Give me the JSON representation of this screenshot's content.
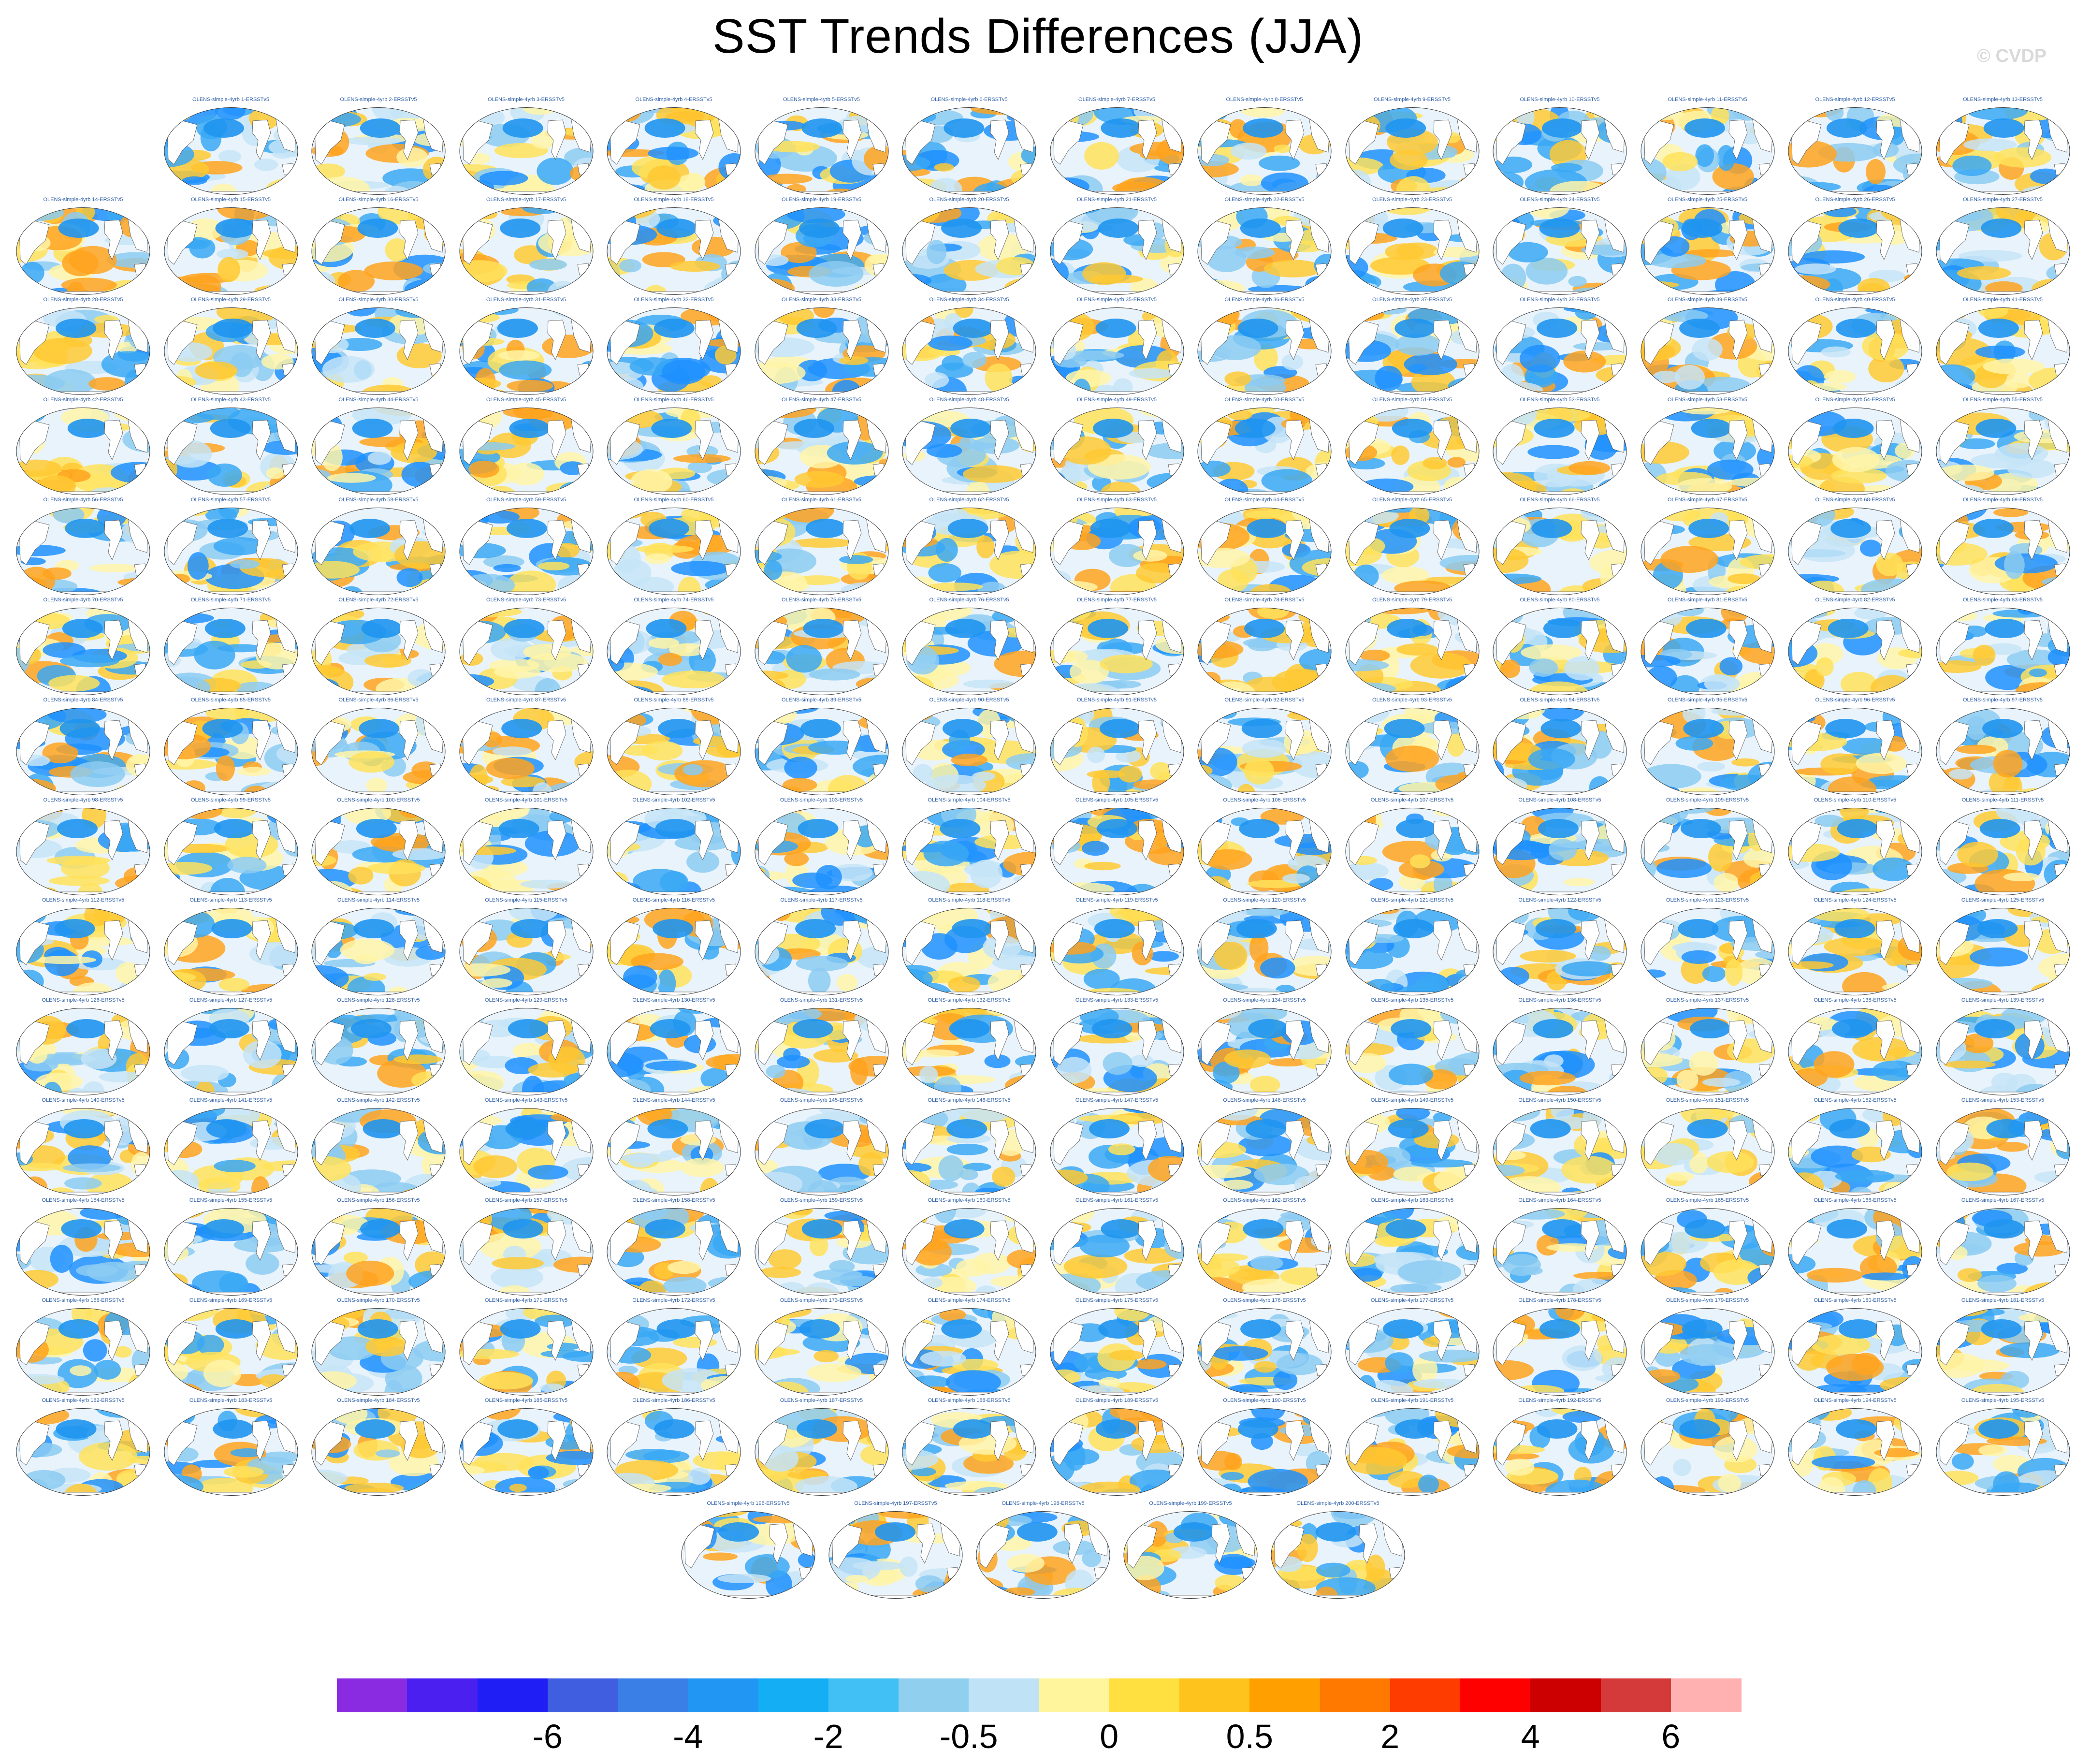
{
  "title": "SST Trends Differences (JJA)",
  "watermark": "© CVDP",
  "panels": {
    "label_prefix": "OLENS-simple-4yrb ",
    "label_suffix": "-ERSSTv5",
    "count": 200
  },
  "colorbar": {
    "colors": [
      "#8a2be2",
      "#4b1ff0",
      "#1e1ef5",
      "#3f5fe0",
      "#3a7fe6",
      "#2196f3",
      "#14aef5",
      "#40c0f5",
      "#90d0ee",
      "#bfe2f7",
      "#fff59d",
      "#ffe040",
      "#ffc31e",
      "#ffa000",
      "#ff7800",
      "#ff3c00",
      "#ff0000",
      "#cc0000",
      "#d43a3a",
      "#ffb0b0"
    ],
    "tick_labels": [
      "-6",
      "-4",
      "-2",
      "-0.5",
      "0",
      "0.5",
      "2",
      "4",
      "6"
    ]
  },
  "chart_data": {
    "type": "heatmap",
    "title": "SST Trends Differences (JJA)",
    "panel_labels_pattern": "OLENS-simple-4yrb N-ERSSTv5",
    "panel_numbers": [
      1,
      200
    ],
    "colorbar_levels": [
      "-6",
      "-4",
      "-2",
      "-0.5",
      "0",
      "0.5",
      "2",
      "4",
      "6"
    ],
    "colorbar_bins": 20
  }
}
